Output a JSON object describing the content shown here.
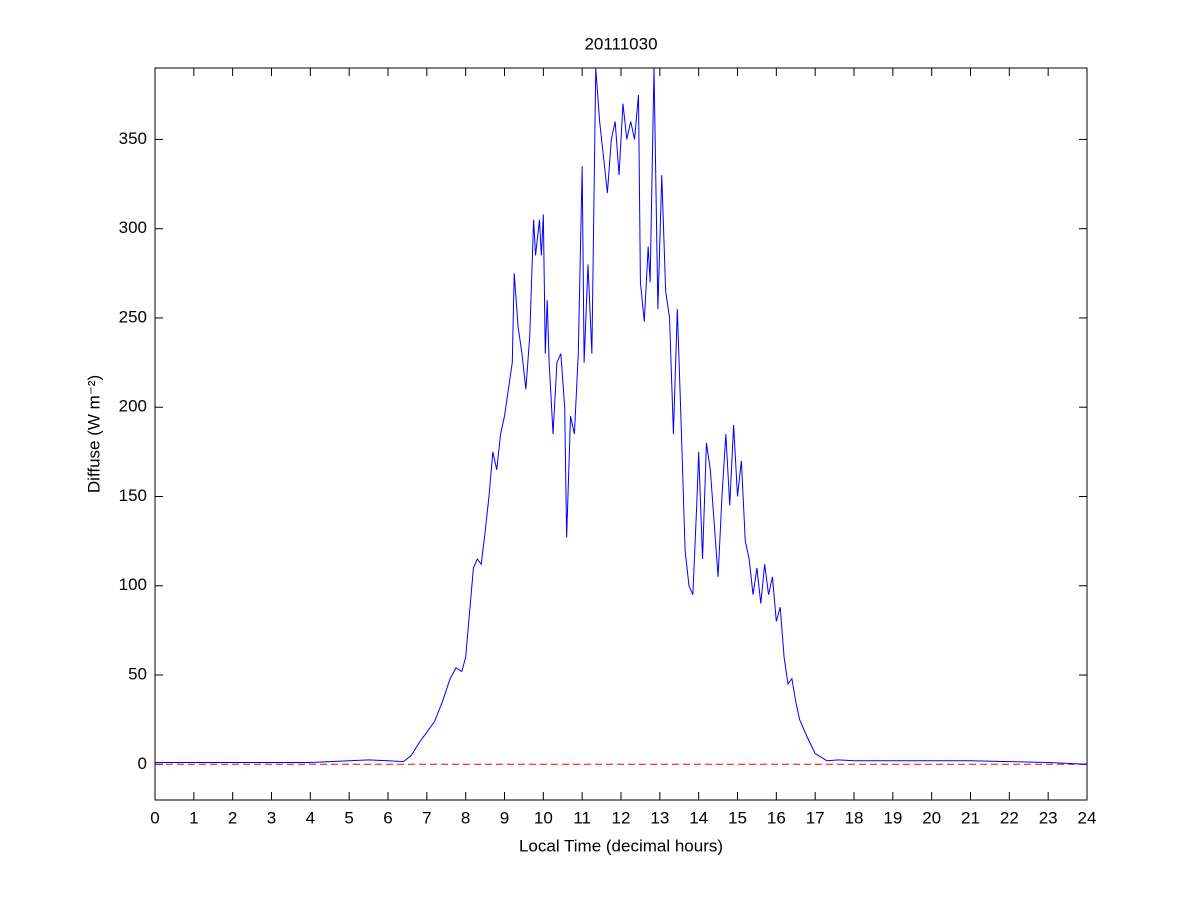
{
  "chart_data": {
    "type": "line",
    "title": "20111030",
    "xlabel": "Local Time (decimal hours)",
    "ylabel": "Diffuse (W m⁻²)",
    "x": [
      0,
      1,
      2,
      3,
      4,
      5,
      5.5,
      6,
      6.4,
      6.6,
      6.8,
      7,
      7.2,
      7.4,
      7.6,
      7.75,
      7.9,
      8.0,
      8.1,
      8.2,
      8.3,
      8.4,
      8.5,
      8.6,
      8.7,
      8.8,
      8.9,
      9.0,
      9.1,
      9.2,
      9.25,
      9.35,
      9.45,
      9.55,
      9.65,
      9.75,
      9.8,
      9.9,
      9.95,
      10.0,
      10.05,
      10.1,
      10.15,
      10.25,
      10.35,
      10.45,
      10.55,
      10.6,
      10.7,
      10.8,
      10.9,
      11.0,
      11.05,
      11.15,
      11.25,
      11.35,
      11.45,
      11.55,
      11.65,
      11.75,
      11.85,
      11.95,
      12.05,
      12.15,
      12.25,
      12.35,
      12.45,
      12.5,
      12.6,
      12.7,
      12.75,
      12.85,
      12.95,
      13.05,
      13.15,
      13.25,
      13.35,
      13.45,
      13.55,
      13.65,
      13.75,
      13.85,
      13.95,
      14.0,
      14.1,
      14.2,
      14.3,
      14.4,
      14.5,
      14.6,
      14.7,
      14.8,
      14.9,
      15.0,
      15.1,
      15.2,
      15.3,
      15.4,
      15.5,
      15.6,
      15.7,
      15.8,
      15.9,
      16.0,
      16.1,
      16.2,
      16.3,
      16.4,
      16.5,
      16.6,
      16.8,
      17.0,
      17.3,
      17.6,
      18,
      19,
      20,
      21,
      22,
      23,
      24
    ],
    "series": [
      {
        "name": "Diffuse",
        "color": "#0000ff",
        "values": [
          1,
          1,
          1,
          1,
          1,
          2,
          2.5,
          2,
          1.5,
          5,
          12,
          18,
          24,
          35,
          48,
          54,
          52,
          60,
          85,
          110,
          115,
          112,
          130,
          150,
          175,
          165,
          185,
          195,
          210,
          225,
          275,
          245,
          230,
          210,
          240,
          305,
          285,
          305,
          285,
          308,
          230,
          260,
          225,
          185,
          225,
          230,
          200,
          127,
          195,
          185,
          230,
          335,
          225,
          280,
          230,
          390,
          360,
          340,
          320,
          350,
          360,
          330,
          370,
          350,
          360,
          350,
          375,
          270,
          248,
          290,
          270,
          390,
          255,
          330,
          265,
          250,
          185,
          255,
          190,
          120,
          100,
          95,
          145,
          175,
          115,
          180,
          165,
          135,
          105,
          150,
          185,
          145,
          190,
          150,
          170,
          125,
          115,
          95,
          110,
          90,
          112,
          95,
          105,
          80,
          88,
          60,
          45,
          48,
          35,
          25,
          15,
          6,
          2,
          2.5,
          2,
          2,
          2,
          2,
          1.5,
          1,
          0
        ]
      }
    ],
    "reference_line": {
      "y": 0,
      "color": "#ff0000",
      "dashed": true
    },
    "xlim": [
      0,
      24
    ],
    "xticks": [
      0,
      1,
      2,
      3,
      4,
      5,
      6,
      7,
      8,
      9,
      10,
      11,
      12,
      13,
      14,
      15,
      16,
      17,
      18,
      19,
      20,
      21,
      22,
      23,
      24
    ],
    "ylim": [
      -20,
      390
    ],
    "yticks": [
      0,
      50,
      100,
      150,
      200,
      250,
      300,
      350
    ]
  }
}
